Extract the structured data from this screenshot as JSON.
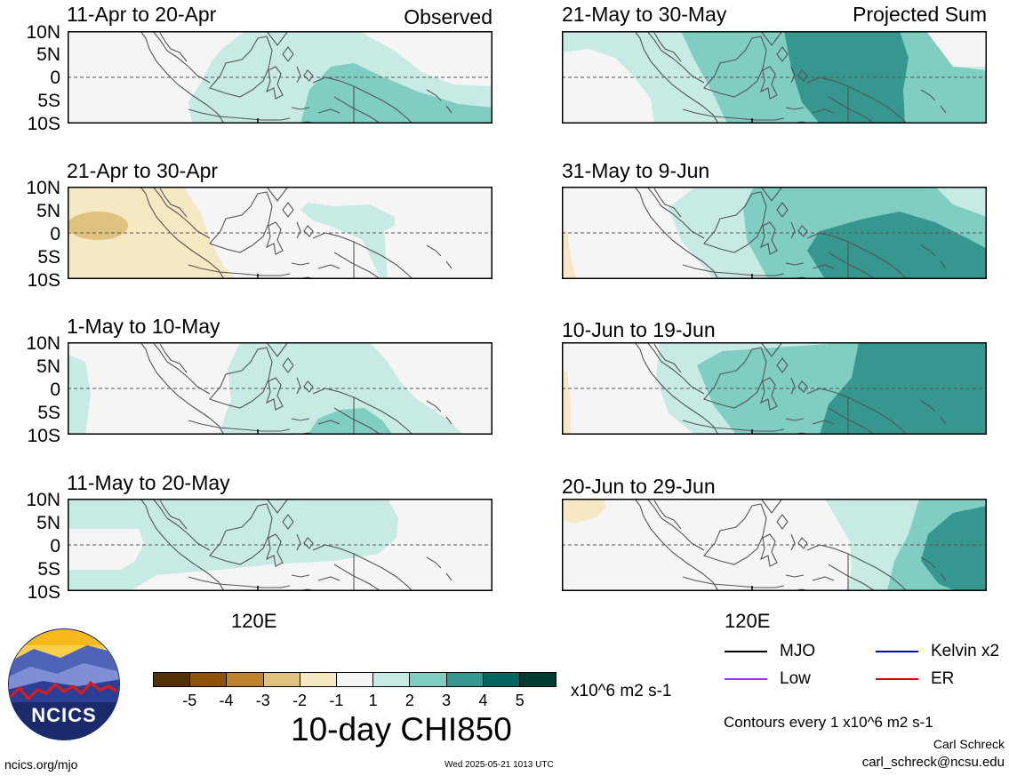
{
  "headers": {
    "left": "Observed",
    "right": "Projected Sum"
  },
  "y_axis_labels": [
    "10N",
    "5N",
    "0",
    "5S",
    "10S"
  ],
  "lon_label": "120E",
  "panels": [
    {
      "title": "11-Apr to 20-Apr",
      "column": "Observed"
    },
    {
      "title": "21-Apr to 30-Apr",
      "column": "Observed"
    },
    {
      "title": "1-May to 10-May",
      "column": "Observed"
    },
    {
      "title": "11-May to 20-May",
      "column": "Observed"
    },
    {
      "title": "21-May to 30-May",
      "column": "Projected Sum"
    },
    {
      "title": "31-May to 9-Jun",
      "column": "Projected Sum"
    },
    {
      "title": "10-Jun to 19-Jun",
      "column": "Projected Sum"
    },
    {
      "title": "20-Jun to 29-Jun",
      "column": "Projected Sum"
    }
  ],
  "colorbar": {
    "ticks": [
      "-5",
      "-4",
      "-3",
      "-2",
      "-1",
      "1",
      "2",
      "3",
      "4",
      "5"
    ],
    "colors": [
      "#543005",
      "#8c510a",
      "#bf812d",
      "#dfc27d",
      "#f6e8c3",
      "#f5f5f5",
      "#c7eae5",
      "#80cdc1",
      "#35978f",
      "#01665e",
      "#003c30"
    ],
    "units": "x10^6 m2 s-1",
    "title": "10-day CHI850"
  },
  "legend": [
    {
      "label": "MJO",
      "color": "#000000"
    },
    {
      "label": "Kelvin x2",
      "color": "#0000cc"
    },
    {
      "label": "Low",
      "color": "#9933ff"
    },
    {
      "label": "ER",
      "color": "#dd0000"
    }
  ],
  "contours_note": "Contours every 1 x10^6 m2 s-1",
  "credits": {
    "author": "Carl Schreck",
    "email": "carl_schreck@ncsu.edu",
    "site": "ncics.org/mjo",
    "timestamp": "Wed 2025-05-21 1013 UTC"
  },
  "logo": {
    "text": "NCICS"
  }
}
